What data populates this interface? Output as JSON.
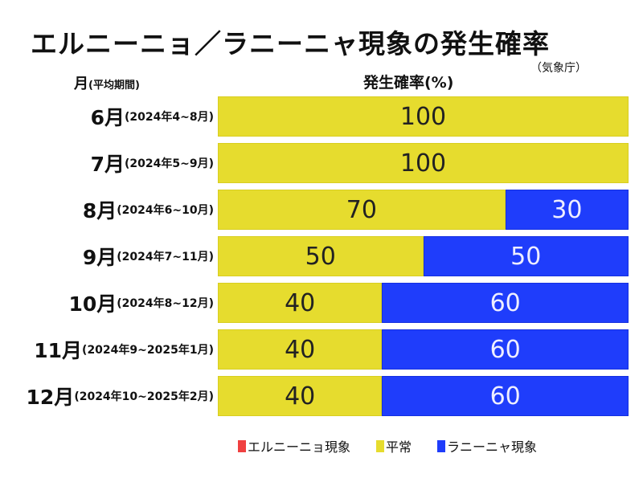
{
  "title": "エルニーニョ／ラニーニャ現象の発生確率",
  "source": "（気象庁）",
  "headers": {
    "month": "月",
    "month_sub": "(平均期間)",
    "probability": "発生確率(%)"
  },
  "colors": {
    "elnino": "#f04040",
    "normal": "#e6dc2e",
    "lanina": "#1f3dfb"
  },
  "chart_data": {
    "type": "bar",
    "orientation": "horizontal",
    "stacked": true,
    "title": "エルニーニョ／ラニーニャ現象の発生確率",
    "xlabel": "発生確率(%)",
    "ylabel": "月(平均期間)",
    "xlim": [
      0,
      100
    ],
    "categories": [
      "6月",
      "7月",
      "8月",
      "9月",
      "10月",
      "11月",
      "12月"
    ],
    "category_periods": [
      "(2024年4~8月)",
      "(2024年5~9月)",
      "(2024年6~10月)",
      "(2024年7~11月)",
      "(2024年8~12月)",
      "(2024年9~2025年1月)",
      "(2024年10~2025年2月)"
    ],
    "series": [
      {
        "name": "エルニーニョ現象",
        "key": "elnino",
        "values": [
          0,
          0,
          0,
          0,
          0,
          0,
          0
        ]
      },
      {
        "name": "平常",
        "key": "normal",
        "values": [
          100,
          100,
          70,
          50,
          40,
          40,
          40
        ]
      },
      {
        "name": "ラニーニャ現象",
        "key": "lanina",
        "values": [
          0,
          0,
          30,
          50,
          60,
          60,
          60
        ]
      }
    ],
    "legend": [
      "エルニーニョ現象",
      "平常",
      "ラニーニャ現象"
    ],
    "legend_position": "bottom",
    "grid": false,
    "data_labels": true
  }
}
